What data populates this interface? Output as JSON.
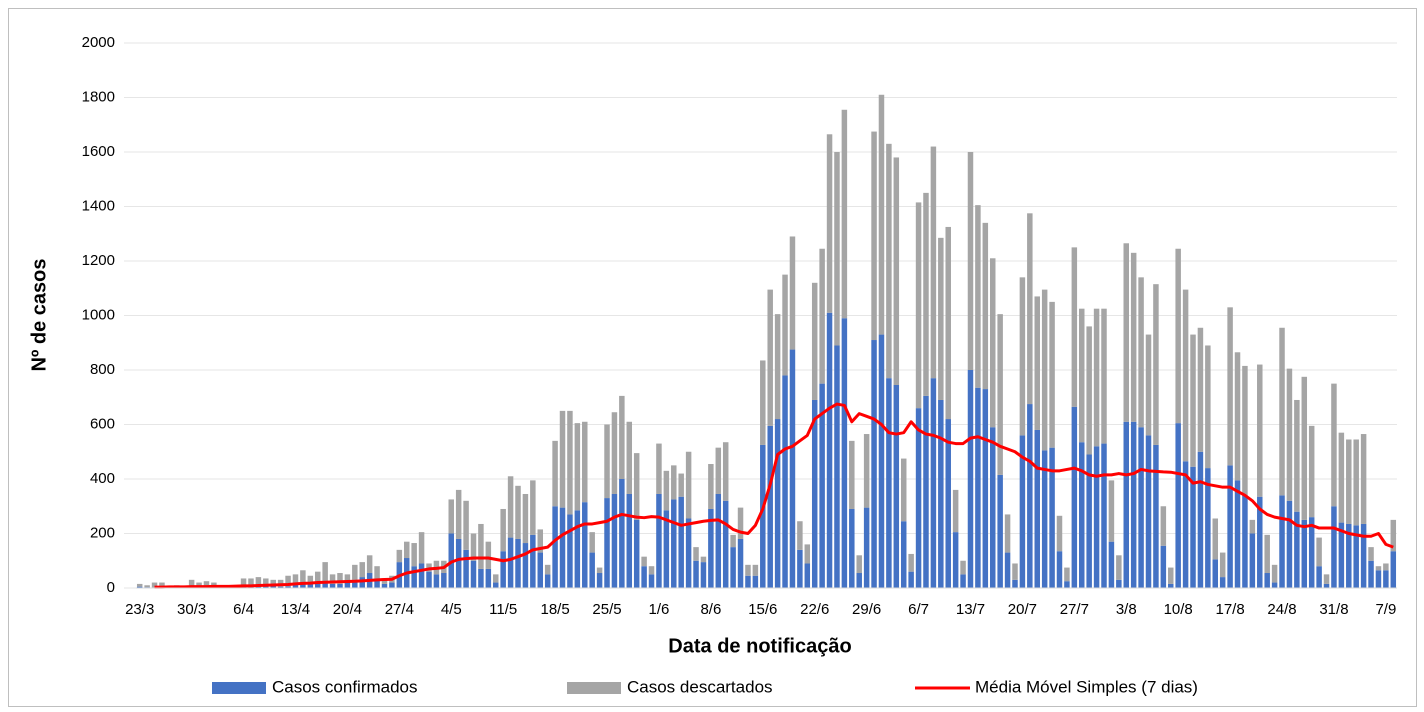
{
  "chart_data": {
    "type": "stacked-bar-line",
    "x_label": "Data de notificação",
    "y_label": "Nº de casos",
    "categories": [
      "23/3",
      null,
      null,
      null,
      null,
      null,
      null,
      "30/3",
      null,
      null,
      null,
      null,
      null,
      null,
      "6/4",
      null,
      null,
      null,
      null,
      null,
      null,
      "13/4",
      null,
      null,
      null,
      null,
      null,
      null,
      "20/4",
      null,
      null,
      null,
      null,
      null,
      null,
      "27/4",
      null,
      null,
      null,
      null,
      null,
      null,
      "4/5",
      null,
      null,
      null,
      null,
      null,
      null,
      "11/5",
      null,
      null,
      null,
      null,
      null,
      null,
      "18/5",
      null,
      null,
      null,
      null,
      null,
      null,
      "25/5",
      null,
      null,
      null,
      null,
      null,
      null,
      "1/6",
      null,
      null,
      null,
      null,
      null,
      null,
      "8/6",
      null,
      null,
      null,
      null,
      null,
      null,
      "15/6",
      null,
      null,
      null,
      null,
      null,
      null,
      "22/6",
      null,
      null,
      null,
      null,
      null,
      null,
      "29/6",
      null,
      null,
      null,
      null,
      null,
      null,
      "6/7",
      null,
      null,
      null,
      null,
      null,
      null,
      "13/7",
      null,
      null,
      null,
      null,
      null,
      null,
      "20/7",
      null,
      null,
      null,
      null,
      null,
      null,
      "27/7",
      null,
      null,
      null,
      null,
      null,
      null,
      "3/8",
      null,
      null,
      null,
      null,
      null,
      null,
      "10/8",
      null,
      null,
      null,
      null,
      null,
      null,
      "17/8",
      null,
      null,
      null,
      null,
      null,
      null,
      "24/8",
      null,
      null,
      null,
      null,
      null,
      null,
      "31/8",
      null,
      null,
      null,
      null,
      null,
      null,
      "7/9",
      null
    ],
    "series": [
      {
        "name": "Casos confirmados",
        "color": "#4472c4",
        "values": [
          5,
          3,
          2,
          3,
          4,
          2,
          1,
          5,
          8,
          5,
          6,
          5,
          3,
          3,
          8,
          10,
          10,
          12,
          8,
          5,
          6,
          15,
          20,
          20,
          25,
          20,
          15,
          15,
          25,
          30,
          40,
          55,
          30,
          15,
          20,
          95,
          110,
          80,
          90,
          60,
          50,
          55,
          200,
          180,
          140,
          100,
          70,
          70,
          20,
          135,
          185,
          180,
          165,
          195,
          130,
          50,
          300,
          295,
          270,
          285,
          315,
          130,
          55,
          330,
          345,
          400,
          345,
          250,
          80,
          50,
          345,
          285,
          325,
          335,
          255,
          100,
          95,
          290,
          345,
          320,
          150,
          180,
          45,
          45,
          525,
          595,
          620,
          780,
          875,
          140,
          90,
          690,
          750,
          1010,
          890,
          990,
          290,
          55,
          295,
          910,
          930,
          770,
          745,
          245,
          60,
          660,
          705,
          770,
          690,
          620,
          205,
          50,
          800,
          735,
          730,
          590,
          415,
          130,
          30,
          560,
          675,
          580,
          505,
          515,
          135,
          25,
          665,
          535,
          490,
          520,
          530,
          170,
          30,
          610,
          610,
          590,
          560,
          525,
          155,
          15,
          605,
          465,
          445,
          500,
          440,
          105,
          40,
          450,
          395,
          340,
          200,
          335,
          55,
          20,
          340,
          320,
          280,
          250,
          260,
          80,
          15,
          300,
          240,
          235,
          230,
          235,
          100,
          65,
          65,
          135
        ]
      },
      {
        "name": "Casos descartados",
        "color": "#a5a5a5",
        "values": [
          10,
          7,
          18,
          17,
          1,
          8,
          4,
          25,
          12,
          20,
          14,
          5,
          5,
          7,
          27,
          25,
          30,
          23,
          22,
          25,
          39,
          35,
          45,
          25,
          35,
          75,
          35,
          40,
          25,
          55,
          55,
          65,
          50,
          15,
          25,
          45,
          60,
          85,
          115,
          30,
          50,
          45,
          125,
          180,
          180,
          100,
          165,
          100,
          30,
          155,
          225,
          195,
          180,
          200,
          85,
          35,
          240,
          355,
          380,
          320,
          295,
          75,
          20,
          270,
          300,
          305,
          265,
          245,
          35,
          30,
          185,
          145,
          125,
          85,
          245,
          50,
          20,
          165,
          170,
          215,
          45,
          115,
          40,
          40,
          310,
          500,
          385,
          370,
          415,
          105,
          70,
          430,
          495,
          655,
          710,
          765,
          250,
          65,
          270,
          765,
          880,
          860,
          835,
          230,
          65,
          755,
          745,
          850,
          595,
          705,
          155,
          50,
          800,
          670,
          610,
          620,
          590,
          140,
          60,
          580,
          700,
          490,
          590,
          535,
          130,
          50,
          585,
          490,
          470,
          505,
          495,
          225,
          90,
          655,
          620,
          550,
          370,
          590,
          145,
          60,
          640,
          630,
          485,
          455,
          450,
          150,
          90,
          580,
          470,
          475,
          50,
          485,
          140,
          65,
          615,
          485,
          410,
          525,
          335,
          105,
          35,
          450,
          330,
          310,
          315,
          330,
          50,
          15,
          25,
          115
        ]
      },
      {
        "name": "Média Móvel Simples (7 dias)",
        "color": "#ff0000",
        "type": "line",
        "values": [
          null,
          null,
          3,
          3,
          4,
          4,
          4,
          5,
          5,
          5,
          6,
          6,
          6,
          7,
          8,
          8,
          9,
          10,
          11,
          12,
          13,
          15,
          17,
          18,
          20,
          21,
          22,
          23,
          24,
          25,
          26,
          28,
          30,
          31,
          32,
          45,
          55,
          60,
          65,
          70,
          72,
          75,
          95,
          105,
          108,
          110,
          110,
          110,
          105,
          100,
          105,
          115,
          125,
          140,
          145,
          150,
          175,
          195,
          210,
          225,
          235,
          235,
          240,
          245,
          260,
          270,
          265,
          260,
          258,
          262,
          260,
          250,
          240,
          230,
          235,
          240,
          245,
          248,
          250,
          235,
          215,
          205,
          200,
          230,
          290,
          380,
          490,
          510,
          520,
          540,
          560,
          620,
          640,
          660,
          675,
          670,
          610,
          640,
          630,
          620,
          600,
          570,
          565,
          570,
          610,
          580,
          565,
          560,
          550,
          535,
          530,
          530,
          550,
          555,
          545,
          535,
          520,
          510,
          500,
          480,
          465,
          440,
          435,
          430,
          430,
          435,
          440,
          430,
          415,
          410,
          415,
          415,
          420,
          415,
          420,
          435,
          430,
          428,
          426,
          425,
          420,
          415,
          385,
          390,
          380,
          375,
          370,
          370,
          355,
          340,
          320,
          290,
          270,
          260,
          255,
          250,
          230,
          225,
          230,
          220,
          220,
          220,
          210,
          200,
          195,
          190,
          190,
          200,
          160,
          150
        ]
      }
    ],
    "ylim": [
      0,
      2000
    ],
    "yticks": [
      0,
      200,
      400,
      600,
      800,
      1000,
      1200,
      1400,
      1600,
      1800,
      2000
    ],
    "grid": true
  }
}
